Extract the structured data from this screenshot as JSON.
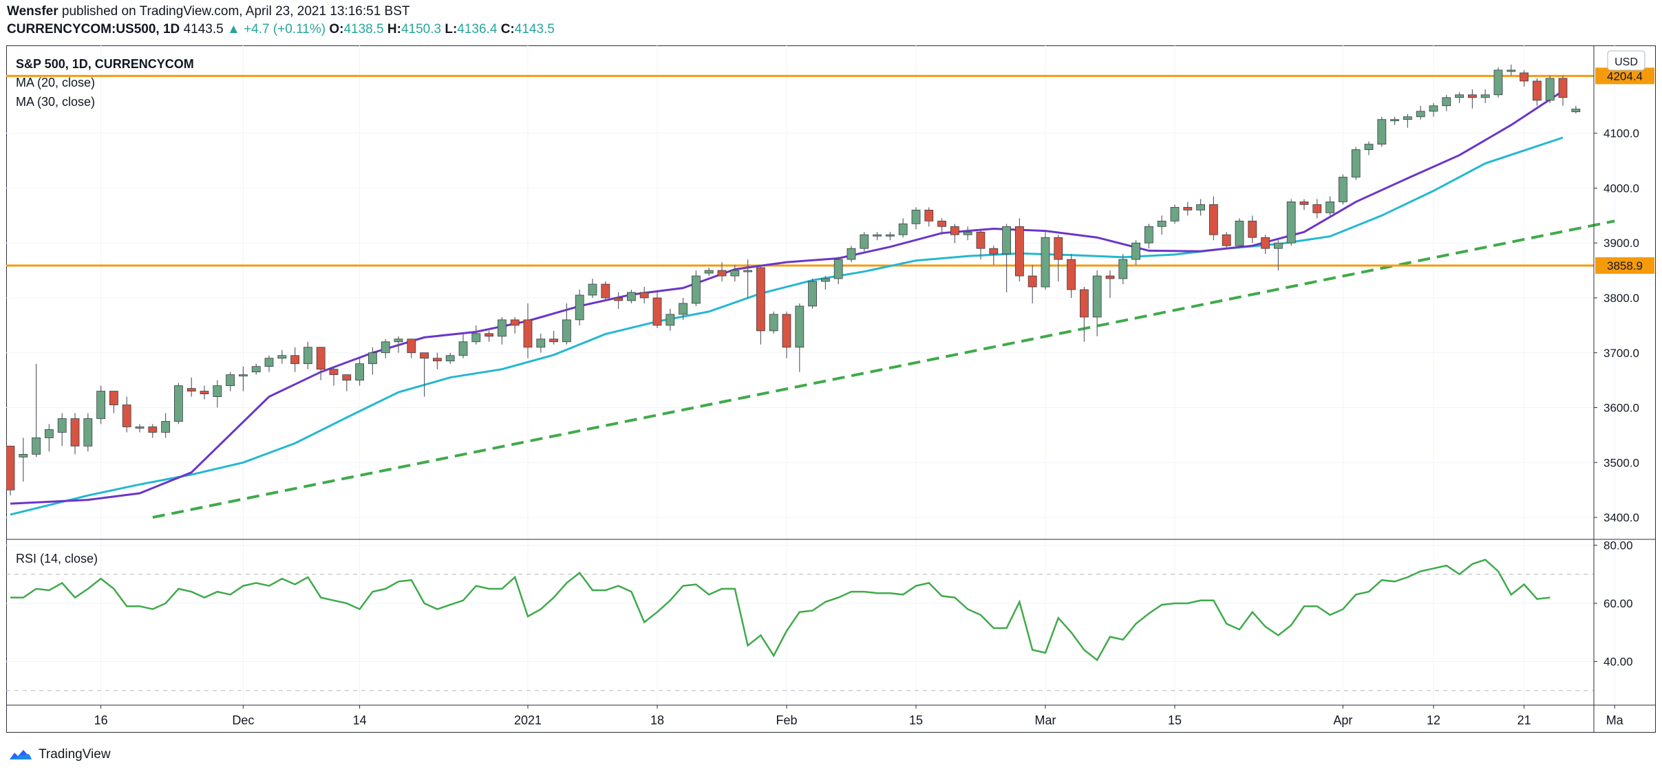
{
  "header": {
    "publisher": "Wensfer",
    "published_text": "published on TradingView.com, April 23, 2021 13:16:51 BST",
    "symbol": "CURRENCYCOM:US500, 1D",
    "last": "4143.5",
    "change": "+4.7 (+0.11%)",
    "o_label": "O:",
    "o": "4138.5",
    "h_label": "H:",
    "h": "4150.3",
    "l_label": "L:",
    "l": "4136.4",
    "c_label": "C:",
    "c": "4143.5"
  },
  "legend": {
    "title": "S&P 500, 1D, CURRENCYCOM",
    "ma20": "MA (20, close)",
    "ma30": "MA (30, close)",
    "currency": "USD",
    "rsi": "RSI (14, close)"
  },
  "footer": {
    "brand": "TradingView"
  },
  "colors": {
    "up": "#6ba583",
    "down": "#d75442",
    "ma20": "#6a35c8",
    "ma30": "#22b8cf",
    "level": "#f59b0b",
    "trend": "#3faa4a",
    "rsi": "#3faa4a"
  },
  "chart_data": {
    "type": "candlestick",
    "price_axis": {
      "min": 3360,
      "max": 4260,
      "ticks": [
        "3400.0",
        "3500.0",
        "3600.0",
        "3700.0",
        "3800.0",
        "3900.0",
        "4000.0",
        "4100.0"
      ]
    },
    "rsi_axis": {
      "min": 25,
      "max": 82,
      "ticks": [
        "40.00",
        "60.00",
        "80.00"
      ],
      "bands": [
        30,
        70
      ]
    },
    "x_labels": [
      {
        "i": 7,
        "label": "16"
      },
      {
        "i": 18,
        "label": "Dec"
      },
      {
        "i": 27,
        "label": "14"
      },
      {
        "i": 40,
        "label": "2021"
      },
      {
        "i": 50,
        "label": "18"
      },
      {
        "i": 60,
        "label": "Feb"
      },
      {
        "i": 70,
        "label": "15"
      },
      {
        "i": 80,
        "label": "Mar"
      },
      {
        "i": 90,
        "label": "15"
      },
      {
        "i": 103,
        "label": "Apr"
      },
      {
        "i": 110,
        "label": "12"
      },
      {
        "i": 117,
        "label": "21"
      },
      {
        "i": 124,
        "label": "Ma"
      }
    ],
    "levels": [
      {
        "value": 4204.4,
        "label": "4204.4"
      },
      {
        "value": 3858.9,
        "label": "3858.9"
      }
    ],
    "trendline": [
      {
        "i": 11,
        "value": 3400
      },
      {
        "i": 124,
        "value": 3940
      }
    ],
    "candles": [
      [
        3530,
        3450,
        3530,
        3440
      ],
      [
        3510,
        3515,
        3545,
        3465
      ],
      [
        3515,
        3545,
        3680,
        3510
      ],
      [
        3545,
        3560,
        3570,
        3520
      ],
      [
        3555,
        3580,
        3590,
        3530
      ],
      [
        3580,
        3530,
        3590,
        3515
      ],
      [
        3530,
        3580,
        3590,
        3520
      ],
      [
        3580,
        3630,
        3640,
        3570
      ],
      [
        3630,
        3605,
        3625,
        3590
      ],
      [
        3605,
        3565,
        3620,
        3555
      ],
      [
        3565,
        3565,
        3570,
        3555
      ],
      [
        3565,
        3555,
        3570,
        3545
      ],
      [
        3555,
        3575,
        3590,
        3545
      ],
      [
        3575,
        3640,
        3645,
        3570
      ],
      [
        3635,
        3630,
        3655,
        3620
      ],
      [
        3630,
        3625,
        3640,
        3615
      ],
      [
        3620,
        3640,
        3650,
        3600
      ],
      [
        3640,
        3660,
        3665,
        3630
      ],
      [
        3660,
        3660,
        3675,
        3630
      ],
      [
        3665,
        3675,
        3680,
        3660
      ],
      [
        3675,
        3690,
        3695,
        3665
      ],
      [
        3690,
        3695,
        3705,
        3680
      ],
      [
        3695,
        3680,
        3710,
        3665
      ],
      [
        3680,
        3710,
        3720,
        3670
      ],
      [
        3710,
        3670,
        3700,
        3650
      ],
      [
        3670,
        3660,
        3675,
        3640
      ],
      [
        3660,
        3650,
        3660,
        3630
      ],
      [
        3650,
        3680,
        3690,
        3640
      ],
      [
        3680,
        3700,
        3710,
        3660
      ],
      [
        3700,
        3720,
        3725,
        3690
      ],
      [
        3720,
        3725,
        3730,
        3700
      ],
      [
        3725,
        3700,
        3720,
        3690
      ],
      [
        3700,
        3690,
        3700,
        3620
      ],
      [
        3690,
        3685,
        3700,
        3670
      ],
      [
        3685,
        3695,
        3700,
        3680
      ],
      [
        3695,
        3720,
        3735,
        3690
      ],
      [
        3720,
        3735,
        3750,
        3715
      ],
      [
        3735,
        3730,
        3740,
        3720
      ],
      [
        3730,
        3760,
        3765,
        3715
      ],
      [
        3760,
        3750,
        3765,
        3735
      ],
      [
        3760,
        3710,
        3790,
        3690
      ],
      [
        3710,
        3725,
        3735,
        3700
      ],
      [
        3725,
        3720,
        3740,
        3715
      ],
      [
        3720,
        3760,
        3790,
        3715
      ],
      [
        3760,
        3805,
        3815,
        3750
      ],
      [
        3805,
        3825,
        3835,
        3800
      ],
      [
        3825,
        3800,
        3830,
        3795
      ],
      [
        3800,
        3795,
        3810,
        3780
      ],
      [
        3795,
        3810,
        3815,
        3790
      ],
      [
        3810,
        3800,
        3820,
        3790
      ],
      [
        3800,
        3750,
        3810,
        3745
      ],
      [
        3750,
        3770,
        3780,
        3740
      ],
      [
        3770,
        3790,
        3800,
        3760
      ],
      [
        3790,
        3840,
        3850,
        3785
      ],
      [
        3845,
        3850,
        3855,
        3840
      ],
      [
        3850,
        3840,
        3865,
        3830
      ],
      [
        3840,
        3850,
        3860,
        3830
      ],
      [
        3850,
        3850,
        3870,
        3800
      ],
      [
        3855,
        3740,
        3860,
        3715
      ],
      [
        3740,
        3770,
        3775,
        3735
      ],
      [
        3770,
        3710,
        3775,
        3690
      ],
      [
        3710,
        3785,
        3790,
        3665
      ],
      [
        3785,
        3830,
        3835,
        3780
      ],
      [
        3830,
        3835,
        3840,
        3815
      ],
      [
        3835,
        3870,
        3875,
        3825
      ],
      [
        3870,
        3890,
        3895,
        3865
      ],
      [
        3890,
        3915,
        3920,
        3885
      ],
      [
        3915,
        3915,
        3920,
        3905
      ],
      [
        3915,
        3915,
        3920,
        3905
      ],
      [
        3915,
        3935,
        3945,
        3910
      ],
      [
        3935,
        3960,
        3965,
        3925
      ],
      [
        3960,
        3940,
        3965,
        3930
      ],
      [
        3940,
        3930,
        3945,
        3915
      ],
      [
        3930,
        3915,
        3935,
        3900
      ],
      [
        3915,
        3920,
        3930,
        3905
      ],
      [
        3920,
        3890,
        3925,
        3870
      ],
      [
        3890,
        3880,
        3895,
        3860
      ],
      [
        3880,
        3930,
        3935,
        3810
      ],
      [
        3930,
        3840,
        3945,
        3830
      ],
      [
        3840,
        3820,
        3860,
        3790
      ],
      [
        3820,
        3910,
        3920,
        3815
      ],
      [
        3910,
        3870,
        3915,
        3830
      ],
      [
        3870,
        3815,
        3880,
        3800
      ],
      [
        3815,
        3765,
        3820,
        3720
      ],
      [
        3765,
        3840,
        3850,
        3730
      ],
      [
        3840,
        3835,
        3850,
        3800
      ],
      [
        3835,
        3870,
        3880,
        3825
      ],
      [
        3870,
        3900,
        3905,
        3860
      ],
      [
        3900,
        3930,
        3935,
        3890
      ],
      [
        3930,
        3940,
        3950,
        3915
      ],
      [
        3940,
        3965,
        3970,
        3935
      ],
      [
        3965,
        3960,
        3975,
        3950
      ],
      [
        3960,
        3970,
        3980,
        3950
      ],
      [
        3970,
        3915,
        3985,
        3905
      ],
      [
        3915,
        3895,
        3920,
        3890
      ],
      [
        3895,
        3940,
        3945,
        3890
      ],
      [
        3940,
        3910,
        3950,
        3900
      ],
      [
        3910,
        3890,
        3915,
        3880
      ],
      [
        3890,
        3900,
        3905,
        3850
      ],
      [
        3900,
        3975,
        3980,
        3895
      ],
      [
        3975,
        3970,
        3980,
        3960
      ],
      [
        3970,
        3955,
        3980,
        3945
      ],
      [
        3955,
        3975,
        3985,
        3950
      ],
      [
        3975,
        4020,
        4025,
        3970
      ],
      [
        4020,
        4070,
        4075,
        4015
      ],
      [
        4070,
        4080,
        4085,
        4060
      ],
      [
        4080,
        4125,
        4130,
        4075
      ],
      [
        4125,
        4125,
        4130,
        4115
      ],
      [
        4125,
        4130,
        4135,
        4110
      ],
      [
        4130,
        4140,
        4150,
        4125
      ],
      [
        4140,
        4150,
        4155,
        4130
      ],
      [
        4150,
        4165,
        4170,
        4140
      ],
      [
        4165,
        4170,
        4175,
        4155
      ],
      [
        4170,
        4165,
        4180,
        4145
      ],
      [
        4165,
        4170,
        4180,
        4155
      ],
      [
        4170,
        4215,
        4220,
        4165
      ],
      [
        4215,
        4215,
        4225,
        4205
      ],
      [
        4210,
        4195,
        4215,
        4185
      ],
      [
        4195,
        4160,
        4200,
        4150
      ],
      [
        4160,
        4200,
        4205,
        4155
      ],
      [
        4200,
        4165,
        4205,
        4150
      ],
      [
        4139,
        4144,
        4150,
        4136
      ]
    ],
    "ma20": [
      [
        0,
        3425
      ],
      [
        6,
        3432
      ],
      [
        10,
        3444
      ],
      [
        14,
        3482
      ],
      [
        20,
        3620
      ],
      [
        24,
        3665
      ],
      [
        28,
        3700
      ],
      [
        32,
        3728
      ],
      [
        36,
        3738
      ],
      [
        40,
        3758
      ],
      [
        44,
        3785
      ],
      [
        48,
        3806
      ],
      [
        52,
        3818
      ],
      [
        56,
        3852
      ],
      [
        60,
        3865
      ],
      [
        64,
        3872
      ],
      [
        68,
        3893
      ],
      [
        72,
        3918
      ],
      [
        76,
        3926
      ],
      [
        80,
        3922
      ],
      [
        84,
        3910
      ],
      [
        88,
        3886
      ],
      [
        92,
        3885
      ],
      [
        96,
        3895
      ],
      [
        100,
        3920
      ],
      [
        104,
        3975
      ],
      [
        108,
        4018
      ],
      [
        112,
        4060
      ],
      [
        116,
        4115
      ],
      [
        120,
        4177
      ]
    ],
    "ma30": [
      [
        0,
        3405
      ],
      [
        6,
        3440
      ],
      [
        10,
        3460
      ],
      [
        14,
        3478
      ],
      [
        18,
        3500
      ],
      [
        22,
        3535
      ],
      [
        26,
        3582
      ],
      [
        30,
        3628
      ],
      [
        34,
        3655
      ],
      [
        38,
        3670
      ],
      [
        42,
        3696
      ],
      [
        46,
        3734
      ],
      [
        50,
        3757
      ],
      [
        54,
        3775
      ],
      [
        58,
        3808
      ],
      [
        62,
        3832
      ],
      [
        66,
        3848
      ],
      [
        70,
        3868
      ],
      [
        74,
        3876
      ],
      [
        78,
        3881
      ],
      [
        82,
        3878
      ],
      [
        86,
        3874
      ],
      [
        90,
        3879
      ],
      [
        94,
        3890
      ],
      [
        98,
        3898
      ],
      [
        102,
        3912
      ],
      [
        106,
        3950
      ],
      [
        110,
        3995
      ],
      [
        114,
        4045
      ],
      [
        120,
        4092
      ]
    ],
    "rsi": [
      62,
      62,
      65,
      64.5,
      67,
      62,
      65,
      68.5,
      65,
      59,
      59,
      58,
      60,
      65,
      64,
      62,
      64,
      63,
      66,
      67,
      66,
      68.5,
      66.5,
      69,
      62,
      61,
      60,
      58,
      64,
      65,
      67.5,
      68,
      60,
      58,
      59.5,
      61,
      66,
      65,
      65,
      69,
      55.5,
      58,
      62,
      67,
      70.5,
      64.5,
      64.5,
      66,
      64,
      53.5,
      57,
      61,
      66,
      66.5,
      63,
      65,
      65,
      45.5,
      49,
      42,
      50.5,
      57,
      57.5,
      60.5,
      62,
      64,
      64,
      63.5,
      63.5,
      63,
      66,
      67,
      62.5,
      62,
      58,
      56,
      51.5,
      51.5,
      60.5,
      44,
      43,
      55,
      50,
      44,
      40.5,
      48.5,
      47.5,
      53,
      56.5,
      59.5,
      60,
      60,
      61,
      61,
      53,
      51,
      57,
      52,
      49,
      52.5,
      59,
      59,
      56,
      58,
      63,
      64,
      68,
      67.5,
      69,
      71,
      72,
      73,
      70,
      73.5,
      75,
      71,
      63,
      66.5,
      61.5,
      62
    ]
  }
}
